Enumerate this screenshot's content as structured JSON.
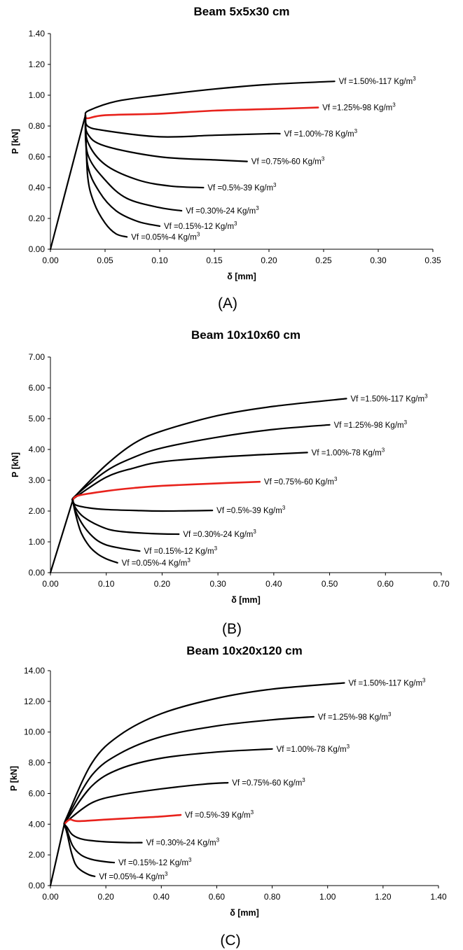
{
  "colors": {
    "normal": "#000000",
    "highlight": "#e8221c"
  },
  "chart_data": [
    {
      "type": "line",
      "panel": "A",
      "title": "Beam 5x5x30 cm",
      "caption": "(A)",
      "xlabel": "δ [mm]",
      "ylabel": "P [kN]",
      "xlim": [
        0,
        0.35
      ],
      "ylim": [
        0,
        1.4
      ],
      "xticks": [
        "0.00",
        "0.05",
        "0.10",
        "0.15",
        "0.20",
        "0.25",
        "0.30",
        "0.35"
      ],
      "yticks": [
        "0.00",
        "0.20",
        "0.40",
        "0.60",
        "0.80",
        "1.00",
        "1.20",
        "1.40"
      ],
      "peak": [
        0.032,
        0.87
      ],
      "highlight": "Vf =1.25%-98 Kg/m3",
      "series": [
        {
          "name": "Vf =1.50%-117 Kg/m3",
          "label_main": "Vf =1.50%-117 Kg/m",
          "x": [
            0.035,
            0.06,
            0.1,
            0.15,
            0.2,
            0.26
          ],
          "y": [
            0.9,
            0.96,
            1.0,
            1.04,
            1.07,
            1.09
          ]
        },
        {
          "name": "Vf =1.25%-98 Kg/m3",
          "label_main": "Vf =1.25%-98 Kg/m",
          "x": [
            0.034,
            0.05,
            0.1,
            0.15,
            0.2,
            0.245
          ],
          "y": [
            0.85,
            0.87,
            0.88,
            0.9,
            0.91,
            0.92
          ]
        },
        {
          "name": "Vf =1.00%-78 Kg/m3",
          "label_main": "Vf =1.00%-78 Kg/m",
          "x": [
            0.034,
            0.05,
            0.1,
            0.15,
            0.2,
            0.21
          ],
          "y": [
            0.8,
            0.77,
            0.73,
            0.74,
            0.75,
            0.75
          ]
        },
        {
          "name": "Vf =0.75%-60 Kg/m3",
          "label_main": "Vf =0.75%-60 Kg/m",
          "x": [
            0.034,
            0.05,
            0.1,
            0.15,
            0.18
          ],
          "y": [
            0.75,
            0.67,
            0.6,
            0.58,
            0.57
          ]
        },
        {
          "name": "Vf =0.5%-39 Kg/m3",
          "label_main": "Vf =0.5%-39 Kg/m",
          "x": [
            0.034,
            0.05,
            0.08,
            0.11,
            0.14
          ],
          "y": [
            0.7,
            0.55,
            0.45,
            0.41,
            0.4
          ]
        },
        {
          "name": "Vf =0.30%-24 Kg/m3",
          "label_main": "Vf =0.30%-24 Kg/m",
          "x": [
            0.034,
            0.05,
            0.07,
            0.1,
            0.12
          ],
          "y": [
            0.62,
            0.45,
            0.33,
            0.27,
            0.25
          ]
        },
        {
          "name": "Vf =0.15%-12 Kg/m3",
          "label_main": "Vf =0.15%-12 Kg/m",
          "x": [
            0.034,
            0.045,
            0.06,
            0.08,
            0.1
          ],
          "y": [
            0.55,
            0.37,
            0.25,
            0.18,
            0.15
          ]
        },
        {
          "name": "Vf =0.05%-4 Kg/m3",
          "label_main": "Vf =0.05%-4 Kg/m",
          "x": [
            0.034,
            0.04,
            0.05,
            0.06,
            0.07
          ],
          "y": [
            0.48,
            0.3,
            0.17,
            0.1,
            0.08
          ]
        }
      ]
    },
    {
      "type": "line",
      "panel": "B",
      "title": "Beam 10x10x60 cm",
      "caption": "(B)",
      "xlabel": "δ [mm]",
      "ylabel": "P [kN]",
      "xlim": [
        0,
        0.7
      ],
      "ylim": [
        0,
        7
      ],
      "xticks": [
        "0.00",
        "0.10",
        "0.20",
        "0.30",
        "0.40",
        "0.50",
        "0.60",
        "0.70"
      ],
      "yticks": [
        "0.00",
        "1.00",
        "2.00",
        "3.00",
        "4.00",
        "5.00",
        "6.00",
        "7.00"
      ],
      "peak": [
        0.04,
        2.35
      ],
      "highlight": "Vf =0.75%-60 Kg/m3",
      "series": [
        {
          "name": "Vf =1.50%-117 Kg/m3",
          "label_main": "Vf =1.50%-117 Kg/m",
          "x": [
            0.045,
            0.1,
            0.15,
            0.2,
            0.3,
            0.4,
            0.53
          ],
          "y": [
            2.5,
            3.5,
            4.2,
            4.6,
            5.1,
            5.4,
            5.65
          ]
        },
        {
          "name": "Vf =1.25%-98 Kg/m3",
          "label_main": "Vf =1.25%-98 Kg/m",
          "x": [
            0.045,
            0.1,
            0.15,
            0.2,
            0.3,
            0.4,
            0.5
          ],
          "y": [
            2.5,
            3.3,
            3.75,
            4.05,
            4.4,
            4.65,
            4.8
          ]
        },
        {
          "name": "Vf =1.00%-78 Kg/m3",
          "label_main": "Vf =1.00%-78 Kg/m",
          "x": [
            0.045,
            0.1,
            0.15,
            0.2,
            0.3,
            0.4,
            0.46
          ],
          "y": [
            2.45,
            3.1,
            3.4,
            3.6,
            3.75,
            3.85,
            3.9
          ]
        },
        {
          "name": "Vf =0.75%-60 Kg/m3",
          "label_main": "Vf =0.75%-60 Kg/m",
          "x": [
            0.05,
            0.1,
            0.15,
            0.2,
            0.3,
            0.375
          ],
          "y": [
            2.5,
            2.65,
            2.75,
            2.82,
            2.9,
            2.95
          ]
        },
        {
          "name": "Vf =0.5%-39 Kg/m3",
          "label_main": "Vf =0.5%-39 Kg/m",
          "x": [
            0.045,
            0.07,
            0.1,
            0.15,
            0.2,
            0.29
          ],
          "y": [
            2.2,
            2.1,
            2.05,
            2.02,
            2.0,
            2.02
          ]
        },
        {
          "name": "Vf =0.30%-24 Kg/m3",
          "label_main": "Vf =0.30%-24 Kg/m",
          "x": [
            0.045,
            0.06,
            0.09,
            0.12,
            0.18,
            0.23
          ],
          "y": [
            2.1,
            1.8,
            1.5,
            1.35,
            1.27,
            1.25
          ]
        },
        {
          "name": "Vf =0.15%-12 Kg/m3",
          "label_main": "Vf =0.15%-12 Kg/m",
          "x": [
            0.045,
            0.06,
            0.08,
            0.1,
            0.13,
            0.16
          ],
          "y": [
            2.0,
            1.5,
            1.1,
            0.9,
            0.78,
            0.7
          ]
        },
        {
          "name": "Vf =0.05%-4 Kg/m3",
          "label_main": "Vf =0.05%-4 Kg/m",
          "x": [
            0.045,
            0.055,
            0.07,
            0.085,
            0.1,
            0.12
          ],
          "y": [
            1.9,
            1.3,
            0.85,
            0.6,
            0.45,
            0.32
          ]
        }
      ]
    },
    {
      "type": "line",
      "panel": "C",
      "title": "Beam 10x20x120 cm",
      "caption": "(C)",
      "xlabel": "δ [mm]",
      "ylabel": "P [kN]",
      "xlim": [
        0,
        1.4
      ],
      "ylim": [
        0,
        14
      ],
      "xticks": [
        "0.00",
        "0.20",
        "0.40",
        "0.60",
        "0.80",
        "1.00",
        "1.20",
        "1.40"
      ],
      "yticks": [
        "0.00",
        "2.00",
        "4.00",
        "6.00",
        "8.00",
        "10.00",
        "12.00",
        "14.00"
      ],
      "peak": [
        0.05,
        4.0
      ],
      "highlight": "Vf =0.5%-39 Kg/m3",
      "series": [
        {
          "name": "Vf =1.50%-117 Kg/m3",
          "label_main": "Vf =1.50%-117 Kg/m",
          "x": [
            0.06,
            0.15,
            0.25,
            0.4,
            0.6,
            0.8,
            1.06
          ],
          "y": [
            4.5,
            8.0,
            9.8,
            11.2,
            12.2,
            12.8,
            13.2
          ]
        },
        {
          "name": "Vf =1.25%-98 Kg/m3",
          "label_main": "Vf =1.25%-98 Kg/m",
          "x": [
            0.06,
            0.15,
            0.25,
            0.4,
            0.6,
            0.8,
            0.95
          ],
          "y": [
            4.4,
            7.2,
            8.6,
            9.7,
            10.4,
            10.8,
            11.0
          ]
        },
        {
          "name": "Vf =1.00%-78 Kg/m3",
          "label_main": "Vf =1.00%-78 Kg/m",
          "x": [
            0.06,
            0.15,
            0.25,
            0.4,
            0.6,
            0.8
          ],
          "y": [
            4.3,
            6.5,
            7.6,
            8.3,
            8.7,
            8.9
          ]
        },
        {
          "name": "Vf =0.75%-60 Kg/m3",
          "label_main": "Vf =0.75%-60 Kg/m",
          "x": [
            0.06,
            0.15,
            0.25,
            0.4,
            0.55,
            0.64
          ],
          "y": [
            4.2,
            5.4,
            5.9,
            6.3,
            6.6,
            6.7
          ]
        },
        {
          "name": "Vf =0.5%-39 Kg/m3",
          "label_main": "Vf =0.5%-39 Kg/m",
          "x": [
            0.07,
            0.1,
            0.2,
            0.3,
            0.4,
            0.47
          ],
          "y": [
            4.3,
            4.2,
            4.3,
            4.4,
            4.5,
            4.6
          ]
        },
        {
          "name": "Vf =0.30%-24 Kg/m3",
          "label_main": "Vf =0.30%-24 Kg/m",
          "x": [
            0.06,
            0.08,
            0.12,
            0.2,
            0.28,
            0.33
          ],
          "y": [
            3.8,
            3.3,
            3.0,
            2.85,
            2.8,
            2.8
          ]
        },
        {
          "name": "Vf =0.15%-12 Kg/m3",
          "label_main": "Vf =0.15%-12 Kg/m",
          "x": [
            0.06,
            0.08,
            0.11,
            0.15,
            0.2,
            0.23
          ],
          "y": [
            3.6,
            2.6,
            2.0,
            1.7,
            1.55,
            1.5
          ]
        },
        {
          "name": "Vf =0.05%-4 Kg/m3",
          "label_main": "Vf =0.05%-4 Kg/m",
          "x": [
            0.06,
            0.075,
            0.09,
            0.11,
            0.14,
            0.16
          ],
          "y": [
            3.4,
            2.2,
            1.4,
            1.0,
            0.7,
            0.6
          ]
        }
      ]
    }
  ]
}
